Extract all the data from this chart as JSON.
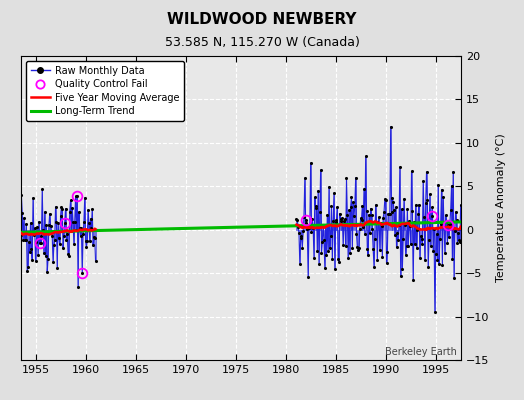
{
  "title": "WILDWOOD NEWBERY",
  "subtitle": "53.585 N, 115.270 W (Canada)",
  "ylabel_right": "Temperature Anomaly (°C)",
  "credit": "Berkeley Earth",
  "xlim": [
    1953.5,
    1997.5
  ],
  "ylim": [
    -15,
    20
  ],
  "yticks": [
    -15,
    -10,
    -5,
    0,
    5,
    10,
    15,
    20
  ],
  "xticks": [
    1955,
    1960,
    1965,
    1970,
    1975,
    1980,
    1985,
    1990,
    1995
  ],
  "bg_color": "#e8e8e8",
  "fig_bg": "#e0e0e0",
  "period1_start": 1953,
  "period1_end": 1960,
  "period2_start": 1981,
  "period2_end": 1997,
  "noise1": 2.5,
  "noise2": 3.0,
  "seed": 42,
  "trend_x": [
    1953.5,
    1997.5
  ],
  "trend_y": [
    -0.3,
    0.9
  ],
  "raw_color": "#2222dd",
  "dot_color": "#000000",
  "qc_color": "#ff00ff",
  "avg_color": "#ff0000",
  "trend_color": "#00bb00",
  "title_fontsize": 11,
  "subtitle_fontsize": 9,
  "tick_fontsize": 8,
  "ylabel_fontsize": 8,
  "legend_fontsize": 7,
  "credit_fontsize": 7
}
